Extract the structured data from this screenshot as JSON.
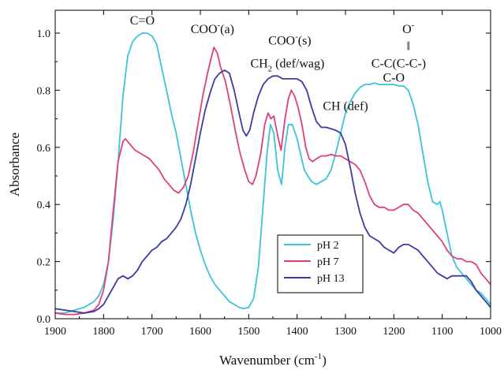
{
  "chart_data": {
    "type": "line",
    "title": "",
    "xlabel": "Wavenumber (cm-1)",
    "xlabel_parts": {
      "main": "Wavenumber (cm",
      "sup": "-1",
      "end": ")"
    },
    "ylabel": "Absorbance",
    "xlim": [
      1900,
      1000
    ],
    "ylim": [
      0.0,
      1.08
    ],
    "x_reversed": true,
    "grid": false,
    "legend_position": "bottom-right",
    "x_ticks": [
      1900,
      1800,
      1700,
      1600,
      1500,
      1400,
      1300,
      1200,
      1100,
      1000
    ],
    "y_ticks": [
      0.0,
      0.2,
      0.4,
      0.6,
      0.8,
      1.0
    ],
    "y_tick_labels": [
      "0.0",
      "0.2",
      "0.4",
      "0.6",
      "0.8",
      "1.0"
    ],
    "annotations": [
      {
        "id": "co",
        "parts": [
          {
            "t": "C=O"
          }
        ],
        "x": 1720,
        "y": 1.03
      },
      {
        "id": "cooa",
        "parts": [
          {
            "t": "COO"
          },
          {
            "t": "-",
            "sup": true
          },
          {
            "t": "(a)"
          }
        ],
        "x": 1575,
        "y": 1.0
      },
      {
        "id": "coos",
        "parts": [
          {
            "t": "COO"
          },
          {
            "t": "-",
            "sup": true
          },
          {
            "t": "(s)"
          }
        ],
        "x": 1415,
        "y": 0.96
      },
      {
        "id": "ch2",
        "parts": [
          {
            "t": "CH"
          },
          {
            "t": "2",
            "sub": true
          },
          {
            "t": " (def/wag)"
          }
        ],
        "x": 1420,
        "y": 0.88
      },
      {
        "id": "chdef",
        "parts": [
          {
            "t": "CH (def)"
          }
        ],
        "x": 1300,
        "y": 0.73
      },
      {
        "id": "o",
        "parts": [
          {
            "t": "O"
          },
          {
            "t": "-",
            "sup": true
          }
        ],
        "x": 1170,
        "y": 1.0
      },
      {
        "id": "bar",
        "parts": [
          {
            "t": "‖"
          }
        ],
        "x": 1170,
        "y": 0.94
      },
      {
        "id": "ccc",
        "parts": [
          {
            "t": "C-C(C-C-)"
          }
        ],
        "x": 1190,
        "y": 0.88
      },
      {
        "id": "cmo",
        "parts": [
          {
            "t": "C-O"
          }
        ],
        "x": 1200,
        "y": 0.83
      }
    ],
    "series": [
      {
        "name": "pH 2",
        "color": "#3cc4d8",
        "points": [
          [
            1900,
            0.02
          ],
          [
            1880,
            0.02
          ],
          [
            1860,
            0.03
          ],
          [
            1840,
            0.04
          ],
          [
            1820,
            0.06
          ],
          [
            1810,
            0.08
          ],
          [
            1800,
            0.12
          ],
          [
            1790,
            0.2
          ],
          [
            1780,
            0.35
          ],
          [
            1770,
            0.55
          ],
          [
            1760,
            0.78
          ],
          [
            1750,
            0.92
          ],
          [
            1740,
            0.97
          ],
          [
            1730,
            0.99
          ],
          [
            1720,
            1.0
          ],
          [
            1710,
            1.0
          ],
          [
            1700,
            0.99
          ],
          [
            1690,
            0.96
          ],
          [
            1680,
            0.88
          ],
          [
            1670,
            0.8
          ],
          [
            1660,
            0.72
          ],
          [
            1650,
            0.65
          ],
          [
            1640,
            0.56
          ],
          [
            1630,
            0.47
          ],
          [
            1620,
            0.38
          ],
          [
            1610,
            0.3
          ],
          [
            1600,
            0.24
          ],
          [
            1590,
            0.19
          ],
          [
            1580,
            0.15
          ],
          [
            1570,
            0.12
          ],
          [
            1560,
            0.1
          ],
          [
            1550,
            0.08
          ],
          [
            1540,
            0.06
          ],
          [
            1530,
            0.05
          ],
          [
            1520,
            0.04
          ],
          [
            1510,
            0.035
          ],
          [
            1500,
            0.04
          ],
          [
            1490,
            0.07
          ],
          [
            1480,
            0.18
          ],
          [
            1470,
            0.4
          ],
          [
            1462,
            0.58
          ],
          [
            1455,
            0.68
          ],
          [
            1448,
            0.65
          ],
          [
            1440,
            0.52
          ],
          [
            1432,
            0.47
          ],
          [
            1425,
            0.6
          ],
          [
            1418,
            0.68
          ],
          [
            1410,
            0.68
          ],
          [
            1400,
            0.63
          ],
          [
            1392,
            0.57
          ],
          [
            1385,
            0.52
          ],
          [
            1378,
            0.5
          ],
          [
            1370,
            0.48
          ],
          [
            1360,
            0.47
          ],
          [
            1350,
            0.48
          ],
          [
            1340,
            0.49
          ],
          [
            1330,
            0.52
          ],
          [
            1320,
            0.58
          ],
          [
            1310,
            0.65
          ],
          [
            1300,
            0.72
          ],
          [
            1290,
            0.76
          ],
          [
            1280,
            0.79
          ],
          [
            1270,
            0.81
          ],
          [
            1260,
            0.82
          ],
          [
            1250,
            0.82
          ],
          [
            1240,
            0.825
          ],
          [
            1230,
            0.82
          ],
          [
            1220,
            0.82
          ],
          [
            1210,
            0.82
          ],
          [
            1200,
            0.82
          ],
          [
            1190,
            0.815
          ],
          [
            1180,
            0.815
          ],
          [
            1170,
            0.8
          ],
          [
            1160,
            0.75
          ],
          [
            1150,
            0.68
          ],
          [
            1140,
            0.58
          ],
          [
            1130,
            0.48
          ],
          [
            1120,
            0.41
          ],
          [
            1110,
            0.4
          ],
          [
            1105,
            0.41
          ],
          [
            1100,
            0.38
          ],
          [
            1090,
            0.3
          ],
          [
            1080,
            0.22
          ],
          [
            1070,
            0.18
          ],
          [
            1060,
            0.16
          ],
          [
            1050,
            0.14
          ],
          [
            1040,
            0.12
          ],
          [
            1030,
            0.1
          ],
          [
            1020,
            0.09
          ],
          [
            1010,
            0.07
          ],
          [
            1000,
            0.05
          ]
        ]
      },
      {
        "name": "pH 7",
        "color": "#e0407a",
        "points": [
          [
            1900,
            0.02
          ],
          [
            1880,
            0.015
          ],
          [
            1860,
            0.015
          ],
          [
            1840,
            0.02
          ],
          [
            1820,
            0.03
          ],
          [
            1810,
            0.05
          ],
          [
            1800,
            0.1
          ],
          [
            1790,
            0.2
          ],
          [
            1780,
            0.38
          ],
          [
            1770,
            0.55
          ],
          [
            1760,
            0.62
          ],
          [
            1755,
            0.63
          ],
          [
            1745,
            0.61
          ],
          [
            1735,
            0.59
          ],
          [
            1725,
            0.58
          ],
          [
            1715,
            0.57
          ],
          [
            1705,
            0.56
          ],
          [
            1695,
            0.54
          ],
          [
            1685,
            0.52
          ],
          [
            1675,
            0.49
          ],
          [
            1665,
            0.47
          ],
          [
            1655,
            0.45
          ],
          [
            1645,
            0.44
          ],
          [
            1635,
            0.46
          ],
          [
            1625,
            0.5
          ],
          [
            1615,
            0.58
          ],
          [
            1605,
            0.68
          ],
          [
            1595,
            0.78
          ],
          [
            1585,
            0.86
          ],
          [
            1578,
            0.91
          ],
          [
            1572,
            0.95
          ],
          [
            1565,
            0.93
          ],
          [
            1558,
            0.88
          ],
          [
            1548,
            0.83
          ],
          [
            1538,
            0.75
          ],
          [
            1528,
            0.66
          ],
          [
            1518,
            0.58
          ],
          [
            1508,
            0.52
          ],
          [
            1500,
            0.48
          ],
          [
            1492,
            0.47
          ],
          [
            1485,
            0.5
          ],
          [
            1475,
            0.58
          ],
          [
            1467,
            0.68
          ],
          [
            1460,
            0.72
          ],
          [
            1454,
            0.7
          ],
          [
            1448,
            0.71
          ],
          [
            1440,
            0.64
          ],
          [
            1433,
            0.59
          ],
          [
            1425,
            0.7
          ],
          [
            1418,
            0.77
          ],
          [
            1412,
            0.8
          ],
          [
            1405,
            0.78
          ],
          [
            1398,
            0.74
          ],
          [
            1390,
            0.68
          ],
          [
            1382,
            0.6
          ],
          [
            1375,
            0.56
          ],
          [
            1368,
            0.55
          ],
          [
            1360,
            0.56
          ],
          [
            1350,
            0.57
          ],
          [
            1340,
            0.57
          ],
          [
            1330,
            0.575
          ],
          [
            1320,
            0.57
          ],
          [
            1310,
            0.57
          ],
          [
            1300,
            0.56
          ],
          [
            1290,
            0.55
          ],
          [
            1280,
            0.54
          ],
          [
            1270,
            0.52
          ],
          [
            1260,
            0.48
          ],
          [
            1250,
            0.43
          ],
          [
            1240,
            0.4
          ],
          [
            1230,
            0.39
          ],
          [
            1220,
            0.39
          ],
          [
            1210,
            0.38
          ],
          [
            1200,
            0.38
          ],
          [
            1190,
            0.39
          ],
          [
            1180,
            0.4
          ],
          [
            1170,
            0.4
          ],
          [
            1160,
            0.38
          ],
          [
            1150,
            0.37
          ],
          [
            1140,
            0.35
          ],
          [
            1130,
            0.33
          ],
          [
            1120,
            0.31
          ],
          [
            1110,
            0.29
          ],
          [
            1100,
            0.27
          ],
          [
            1090,
            0.24
          ],
          [
            1080,
            0.22
          ],
          [
            1070,
            0.21
          ],
          [
            1060,
            0.21
          ],
          [
            1050,
            0.2
          ],
          [
            1040,
            0.2
          ],
          [
            1030,
            0.19
          ],
          [
            1020,
            0.16
          ],
          [
            1010,
            0.14
          ],
          [
            1000,
            0.12
          ]
        ]
      },
      {
        "name": "pH 13",
        "color": "#3a3ca0",
        "points": [
          [
            1900,
            0.035
          ],
          [
            1880,
            0.03
          ],
          [
            1860,
            0.025
          ],
          [
            1840,
            0.02
          ],
          [
            1820,
            0.025
          ],
          [
            1810,
            0.035
          ],
          [
            1800,
            0.05
          ],
          [
            1790,
            0.08
          ],
          [
            1780,
            0.11
          ],
          [
            1770,
            0.14
          ],
          [
            1760,
            0.15
          ],
          [
            1750,
            0.14
          ],
          [
            1740,
            0.15
          ],
          [
            1730,
            0.17
          ],
          [
            1720,
            0.2
          ],
          [
            1710,
            0.22
          ],
          [
            1700,
            0.24
          ],
          [
            1690,
            0.25
          ],
          [
            1680,
            0.27
          ],
          [
            1670,
            0.28
          ],
          [
            1660,
            0.3
          ],
          [
            1650,
            0.32
          ],
          [
            1640,
            0.35
          ],
          [
            1630,
            0.4
          ],
          [
            1620,
            0.47
          ],
          [
            1610,
            0.56
          ],
          [
            1600,
            0.65
          ],
          [
            1590,
            0.73
          ],
          [
            1580,
            0.79
          ],
          [
            1570,
            0.84
          ],
          [
            1560,
            0.86
          ],
          [
            1550,
            0.87
          ],
          [
            1540,
            0.86
          ],
          [
            1530,
            0.8
          ],
          [
            1520,
            0.72
          ],
          [
            1512,
            0.66
          ],
          [
            1505,
            0.64
          ],
          [
            1498,
            0.66
          ],
          [
            1490,
            0.72
          ],
          [
            1480,
            0.78
          ],
          [
            1470,
            0.82
          ],
          [
            1460,
            0.84
          ],
          [
            1450,
            0.85
          ],
          [
            1440,
            0.85
          ],
          [
            1430,
            0.84
          ],
          [
            1420,
            0.84
          ],
          [
            1410,
            0.84
          ],
          [
            1400,
            0.84
          ],
          [
            1390,
            0.83
          ],
          [
            1380,
            0.8
          ],
          [
            1370,
            0.74
          ],
          [
            1360,
            0.69
          ],
          [
            1350,
            0.67
          ],
          [
            1340,
            0.67
          ],
          [
            1330,
            0.665
          ],
          [
            1320,
            0.66
          ],
          [
            1310,
            0.65
          ],
          [
            1300,
            0.61
          ],
          [
            1290,
            0.53
          ],
          [
            1280,
            0.44
          ],
          [
            1270,
            0.37
          ],
          [
            1260,
            0.32
          ],
          [
            1250,
            0.29
          ],
          [
            1240,
            0.28
          ],
          [
            1230,
            0.27
          ],
          [
            1220,
            0.25
          ],
          [
            1210,
            0.24
          ],
          [
            1200,
            0.23
          ],
          [
            1190,
            0.25
          ],
          [
            1180,
            0.26
          ],
          [
            1170,
            0.26
          ],
          [
            1160,
            0.25
          ],
          [
            1150,
            0.24
          ],
          [
            1140,
            0.22
          ],
          [
            1130,
            0.2
          ],
          [
            1120,
            0.18
          ],
          [
            1110,
            0.16
          ],
          [
            1100,
            0.15
          ],
          [
            1090,
            0.14
          ],
          [
            1080,
            0.15
          ],
          [
            1070,
            0.15
          ],
          [
            1060,
            0.15
          ],
          [
            1050,
            0.15
          ],
          [
            1040,
            0.13
          ],
          [
            1030,
            0.1
          ],
          [
            1020,
            0.08
          ],
          [
            1010,
            0.06
          ],
          [
            1000,
            0.04
          ]
        ]
      }
    ]
  }
}
